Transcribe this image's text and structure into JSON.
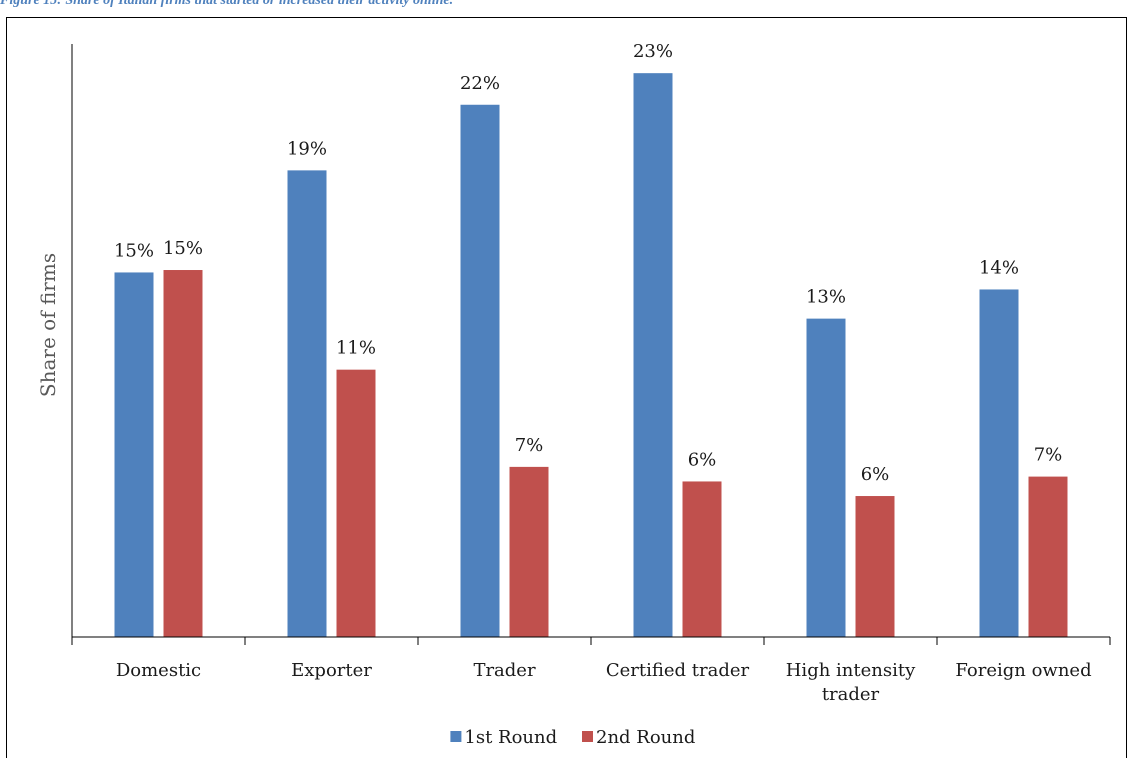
{
  "caption": "Figure 15: Share of Italian firms that started or increased their activity online.",
  "chart_data": {
    "type": "bar",
    "title": "",
    "xlabel": "",
    "ylabel": "Share of firms",
    "ylim": [
      0,
      24.4
    ],
    "grid": false,
    "legend_position": "bottom",
    "categories": [
      [
        "Domestic"
      ],
      [
        "Exporter"
      ],
      [
        "Trader"
      ],
      [
        "Certified trader"
      ],
      [
        "High intensity",
        "trader"
      ],
      [
        "Foreign owned"
      ]
    ],
    "series": [
      {
        "name": "1st Round",
        "color": "#4f81bd",
        "values": [
          15,
          19,
          22,
          23,
          13,
          14
        ],
        "precise": [
          15.0,
          19.2,
          21.9,
          23.2,
          13.1,
          14.3
        ],
        "labels": [
          "15%",
          "19%",
          "22%",
          "23%",
          "13%",
          "14%"
        ]
      },
      {
        "name": "2nd Round",
        "color": "#c0504d",
        "values": [
          15,
          11,
          7,
          6,
          6,
          7
        ],
        "precise": [
          15.1,
          11.0,
          7.0,
          6.4,
          5.8,
          6.6
        ],
        "labels": [
          "15%",
          "11%",
          "7%",
          "6%",
          "6%",
          "7%"
        ]
      }
    ]
  }
}
